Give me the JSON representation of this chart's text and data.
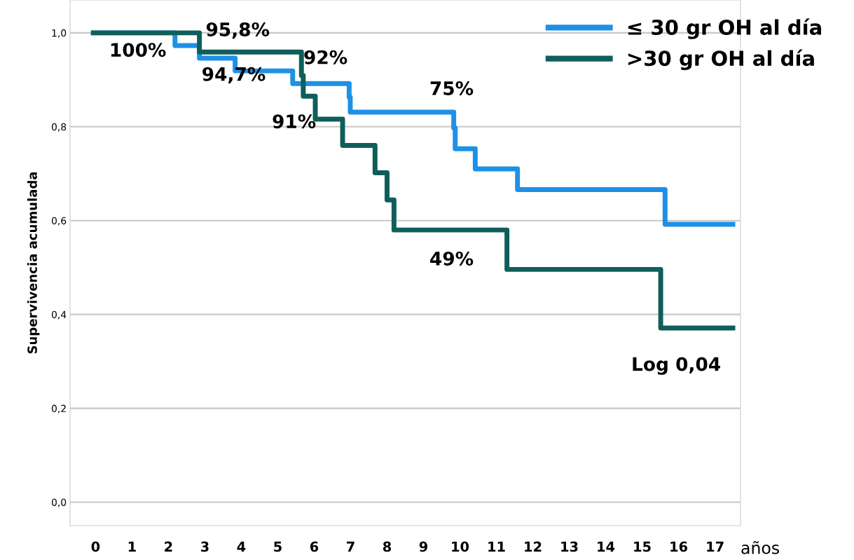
{
  "chart_data": {
    "type": "step",
    "xlabel": "años",
    "ylabel": "Supervivencia acumulada",
    "xlim": [
      -0.7,
      17.7
    ],
    "ylim": [
      -0.05,
      1.07
    ],
    "xticks": [
      0,
      1,
      2,
      3,
      4,
      5,
      6,
      7,
      8,
      9,
      10,
      11,
      12,
      13,
      14,
      15,
      16,
      17
    ],
    "yticks": [
      {
        "value": 0,
        "label": "0,0"
      },
      {
        "value": 0.2,
        "label": "0,2"
      },
      {
        "value": 0.4,
        "label": "0,4"
      },
      {
        "value": 0.6,
        "label": "0,6"
      },
      {
        "value": 0.8,
        "label": "0,8"
      },
      {
        "value": 1.0,
        "label": "1,0"
      }
    ],
    "grid": "y",
    "legend": "top right",
    "series": [
      {
        "name": "≤ 30 gr OH al día",
        "color": "#1e90e6",
        "x": [
          -0.06,
          2.18,
          2.85,
          3.83,
          5.41,
          6.96,
          6.99,
          9.83,
          9.87,
          10.42,
          11.58,
          15.63,
          17.49
        ],
        "values": [
          1.0,
          0.973,
          0.946,
          0.919,
          0.892,
          0.863,
          0.831,
          0.797,
          0.753,
          0.71,
          0.666,
          0.592,
          0.592
        ]
      },
      {
        "name": ">30 gr OH al día",
        "color": "#0f5e5a",
        "x": [
          -0.06,
          2.85,
          5.65,
          5.7,
          6.03,
          6.78,
          7.67,
          8.0,
          8.19,
          11.29,
          15.51,
          17.49
        ],
        "values": [
          1.0,
          0.959,
          0.909,
          0.865,
          0.816,
          0.76,
          0.702,
          0.644,
          0.58,
          0.496,
          0.371,
          0.371
        ]
      }
    ],
    "annotations": [
      "100%",
      "95,8%",
      "92%",
      "94,7%",
      "91%",
      "75%",
      "49%",
      "Log 0,04"
    ]
  }
}
